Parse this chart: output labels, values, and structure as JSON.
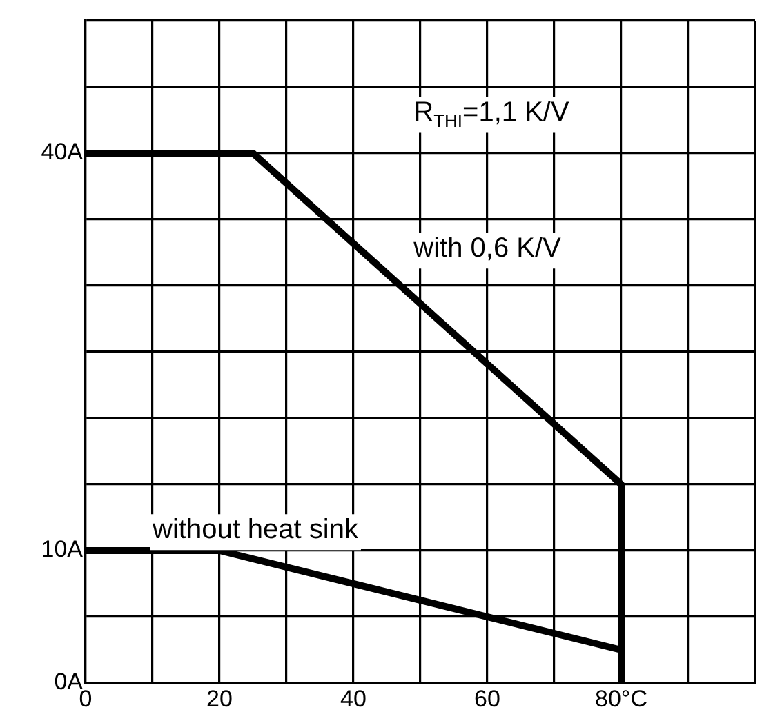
{
  "chart_data": {
    "type": "line",
    "series": [
      {
        "color": "#000000",
        "x": [
          0,
          25,
          80,
          80
        ],
        "values": [
          40,
          40,
          15,
          0
        ]
      },
      {
        "color": "#000000",
        "x": [
          0,
          20,
          80
        ],
        "values": [
          10,
          10,
          2.5
        ]
      }
    ],
    "xlim": [
      0,
      100
    ],
    "xticks": [
      0,
      {
        "value": 10,
        "label": null
      },
      20,
      {
        "value": 30,
        "label": null
      },
      40,
      {
        "value": 50,
        "label": null
      },
      60,
      {
        "value": 70,
        "label": null
      },
      {
        "value": 80,
        "label": "80°C"
      },
      {
        "value": 90,
        "label": null
      },
      {
        "value": 100,
        "label": null
      }
    ],
    "ylim": [
      0,
      50
    ],
    "yticks": [
      {
        "value": 0,
        "label": "0A"
      },
      {
        "value": 5,
        "label": null
      },
      {
        "value": 10,
        "label": "10A"
      },
      {
        "value": 15,
        "label": null
      },
      {
        "value": 20,
        "label": null
      },
      {
        "value": 25,
        "label": null
      },
      {
        "value": 30,
        "label": null
      },
      {
        "value": 35,
        "label": null
      },
      {
        "value": 40,
        "label": "40A"
      },
      {
        "value": 45,
        "label": null
      },
      {
        "value": 50,
        "label": null
      }
    ],
    "grid": true,
    "legend": false,
    "marker": "none",
    "line_style": "solid",
    "annotations": [
      "R$_{THI}$=1,1 K/V",
      "with 0,6 K/V",
      "without heat sink"
    ]
  }
}
